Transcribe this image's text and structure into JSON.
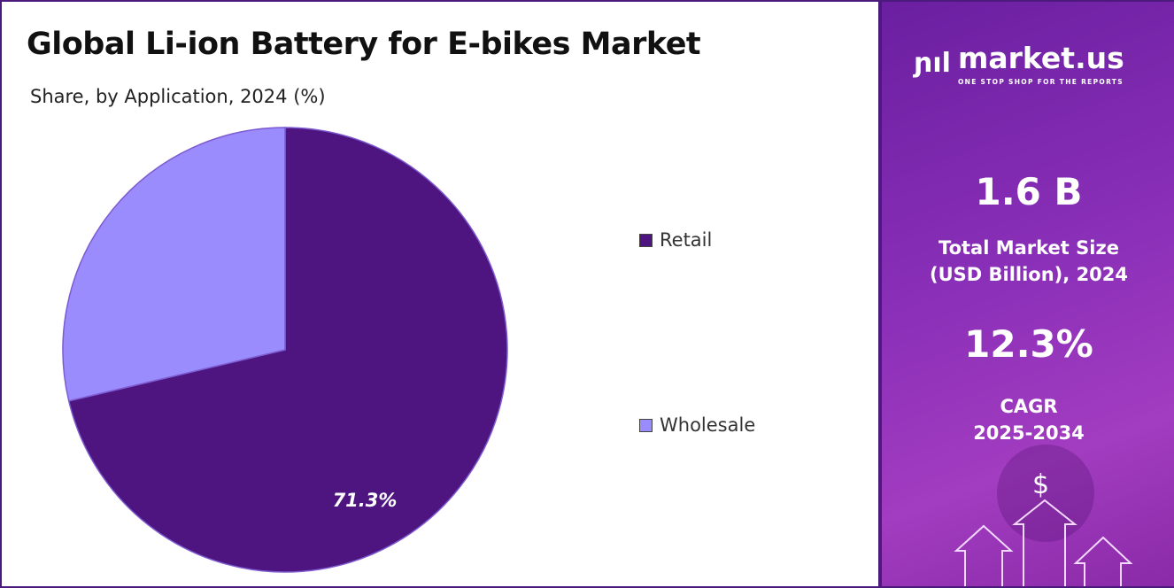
{
  "title": "Global Li-ion Battery for E-bikes Market",
  "subtitle": "Share, by Application, 2024 (%)",
  "chart_data": {
    "type": "pie",
    "title": "Global Li-ion Battery for E-bikes Market",
    "subtitle": "Share, by Application, 2024 (%)",
    "categories": [
      "Retail",
      "Wholesale"
    ],
    "values": [
      71.3,
      28.7
    ],
    "colors": [
      "#4e1580",
      "#9a8cfd"
    ],
    "data_labels": [
      "71.3%",
      ""
    ],
    "legend_position": "right"
  },
  "legend": [
    {
      "label": "Retail",
      "color": "#4e1580"
    },
    {
      "label": "Wholesale",
      "color": "#9a8cfd"
    }
  ],
  "panel": {
    "brand": "market.us",
    "tagline": "ONE STOP SHOP FOR THE REPORTS",
    "market_size": "1.6 B",
    "market_size_label_1": "Total Market Size",
    "market_size_label_2": "(USD Billion), 2024",
    "cagr": "12.3%",
    "cagr_label_1": "CAGR",
    "cagr_label_2": "2025-2034",
    "dollar": "$"
  }
}
